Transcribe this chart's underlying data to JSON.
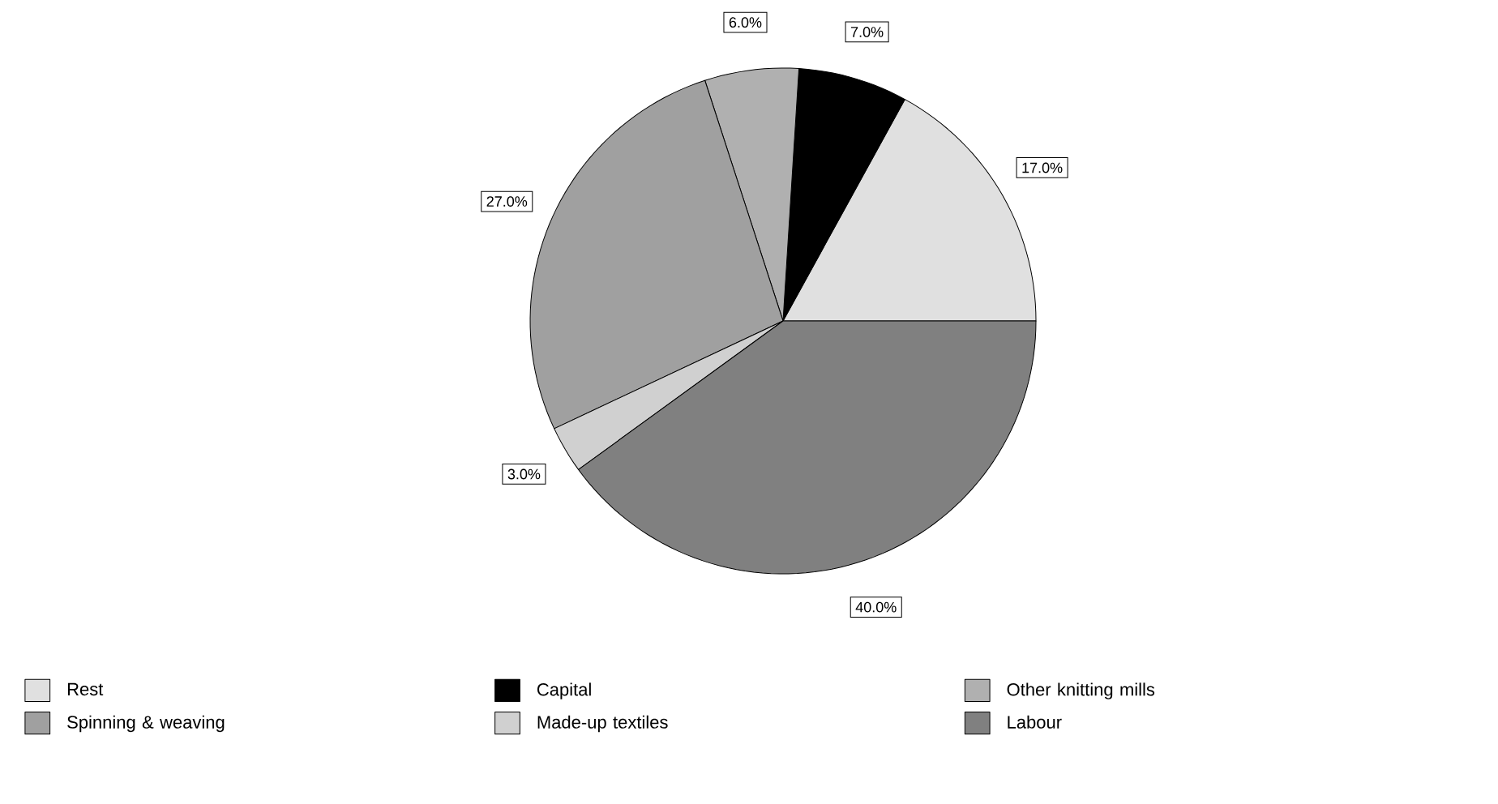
{
  "chart_data": {
    "type": "pie",
    "categories": [
      "Rest",
      "Capital",
      "Other knitting mills",
      "Spinning & weaving",
      "Made-up textiles",
      "Labour"
    ],
    "values": [
      17,
      7,
      6,
      27,
      3,
      40
    ],
    "value_labels": [
      "17.0%",
      "7.0%",
      "6.0%",
      "27.0%",
      "3.0%",
      "40.0%"
    ],
    "colors": [
      "#e0e0e0",
      "#000000",
      "#b0b0b0",
      "#a0a0a0",
      "#d0d0d0",
      "#808080"
    ],
    "legend": "bottom"
  }
}
